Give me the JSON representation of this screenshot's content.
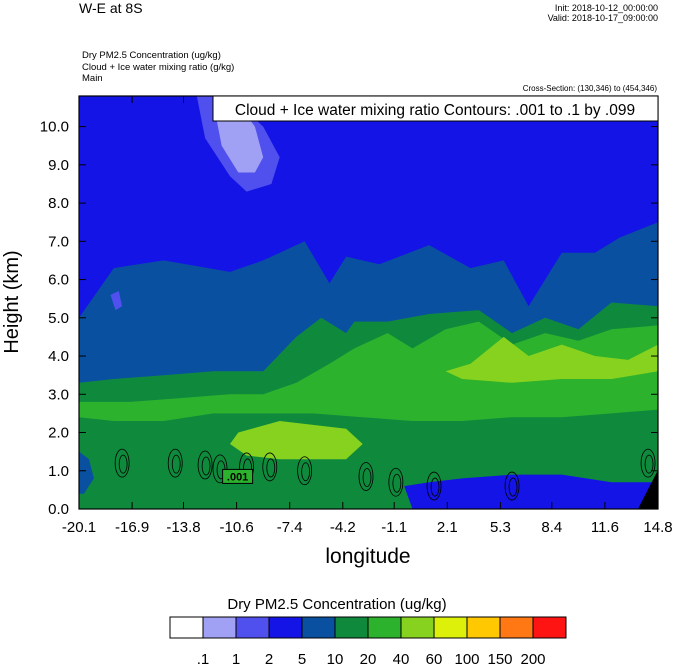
{
  "header": {
    "title": "W-E at 8S",
    "init": "Init: 2018-10-12_00:00:00",
    "valid": "Valid: 2018-10-17_09:00:00",
    "field1": "Dry PM2.5 Concentration   (ug/kg)",
    "field2": "Cloud + Ice water mixing ratio   (g/kg)",
    "field3": "Main",
    "cross_section": "Cross-Section: (130,346) to (454,346)"
  },
  "chart_data": {
    "type": "heatmap",
    "subtype": "vertical cross-section with filled and line contours",
    "xlabel": "longitude",
    "ylabel": "Height (km)",
    "x_ticks": [
      "-20.1",
      "-16.9",
      "-13.8",
      "-10.6",
      "-7.4",
      "-4.2",
      "-1.1",
      "2.1",
      "5.3",
      "8.4",
      "11.6",
      "14.8"
    ],
    "y_ticks": [
      "0.0",
      "1.0",
      "2.0",
      "3.0",
      "4.0",
      "5.0",
      "6.0",
      "7.0",
      "8.0",
      "9.0",
      "10.0"
    ],
    "xlim": [
      -20.1,
      14.8
    ],
    "ylim": [
      0.0,
      10.8
    ],
    "contour_note": "Cloud + Ice water mixing ratio Contours: .001 to .1 by .099",
    "contour_label": ".001",
    "colorbar": {
      "title": "Dry PM2.5 Concentration  (ug/kg)",
      "levels": [
        ".1",
        "1",
        "2",
        "5",
        "10",
        "20",
        "40",
        "60",
        "100",
        "150",
        "200"
      ],
      "colors": [
        "#ffffff",
        "#a0a0f5",
        "#5050ee",
        "#1414e6",
        "#0a50a0",
        "#0f8a3c",
        "#2db22d",
        "#87d21e",
        "#dcf00a",
        "#ffc800",
        "#ff7814",
        "#ff1414"
      ]
    },
    "regions": [
      {
        "level": "5-10",
        "x": [
          -20.1,
          -12,
          -6,
          -2,
          3,
          8,
          14.8,
          14.8,
          -20.1
        ],
        "y": [
          10.8,
          10.8,
          10.8,
          10.8,
          10.8,
          10.8,
          10.8,
          0.0,
          0.0
        ]
      },
      {
        "level": "10-20",
        "x": [
          -20.1,
          -18,
          -15,
          -11,
          -9,
          -6.5,
          -5,
          -4,
          -2,
          1,
          3.5,
          5.5,
          7,
          9,
          11,
          12.5,
          14.8,
          14.8,
          -20.1
        ],
        "y": [
          5.0,
          6.3,
          6.5,
          6.2,
          6.5,
          7.0,
          5.9,
          6.6,
          6.4,
          6.9,
          6.3,
          6.5,
          5.3,
          6.7,
          6.7,
          7.1,
          7.5,
          0.0,
          0.0
        ]
      },
      {
        "level": "20-40",
        "x": [
          -20.1,
          -18,
          -15,
          -12,
          -9,
          -7,
          -5.5,
          -4,
          -3.5,
          -1.5,
          1,
          4,
          6,
          8,
          10,
          12,
          14.8,
          14.8,
          -20.1
        ],
        "y": [
          3.3,
          3.4,
          3.5,
          3.6,
          3.6,
          4.5,
          5.0,
          4.6,
          4.9,
          4.9,
          5.1,
          5.2,
          4.6,
          5.0,
          4.7,
          5.4,
          5.3,
          0.0,
          0.0
        ]
      },
      {
        "level": "40-60",
        "x": [
          -20.1,
          -17,
          -14,
          -11,
          -9,
          -7,
          -5,
          -3.5,
          -1.5,
          0,
          2,
          4,
          6,
          8,
          10,
          12,
          14.8,
          14.8,
          12,
          9,
          6,
          3,
          0,
          -3,
          -6,
          -9,
          -12,
          -15,
          -18,
          -20.1
        ],
        "y": [
          2.8,
          2.8,
          2.9,
          3.0,
          3.0,
          3.3,
          3.8,
          4.2,
          4.6,
          4.2,
          4.7,
          4.9,
          4.3,
          4.6,
          4.4,
          4.7,
          4.8,
          2.6,
          2.5,
          2.4,
          2.4,
          2.3,
          2.3,
          2.4,
          2.5,
          2.5,
          2.5,
          2.3,
          2.3,
          2.4
        ]
      },
      {
        "level": "60-100",
        "x": [
          2,
          3.5,
          5.5,
          7,
          9,
          11,
          13,
          14.8,
          14.8,
          12,
          9,
          6,
          3
        ],
        "y": [
          3.6,
          3.8,
          4.5,
          4.0,
          4.3,
          4.0,
          3.9,
          4.3,
          3.6,
          3.4,
          3.4,
          3.3,
          3.4
        ]
      },
      {
        "level": "60-100",
        "x": [
          -10.5,
          -8,
          -6,
          -4,
          -3,
          -4,
          -6,
          -8,
          -10,
          -11
        ],
        "y": [
          2.0,
          2.3,
          2.2,
          2.1,
          1.7,
          1.3,
          1.3,
          1.3,
          1.4,
          1.7
        ]
      },
      {
        "level": "10-20",
        "x": [
          -20.1,
          -19.5,
          -19.2,
          -19.8,
          -20.1
        ],
        "y": [
          1.5,
          1.3,
          0.8,
          0.4,
          0.4
        ]
      },
      {
        "level": "5-10",
        "x": [
          -0.5,
          1,
          3,
          6,
          9,
          12,
          14.8,
          14.8,
          12,
          9,
          6,
          3,
          0
        ],
        "y": [
          0.6,
          0.7,
          0.8,
          0.9,
          0.9,
          0.7,
          0.7,
          0.0,
          0.0,
          0.0,
          0.0,
          0.0,
          0.0
        ]
      },
      {
        "level": "2-5",
        "x": [
          -13,
          -11,
          -9,
          -8,
          -8.5,
          -10,
          -11,
          -12.5
        ],
        "y": [
          10.8,
          10.8,
          10.0,
          9.2,
          8.5,
          8.3,
          8.7,
          9.7
        ]
      },
      {
        "level": "1-2",
        "x": [
          -12,
          -10.5,
          -9.5,
          -9,
          -9.5,
          -10.5,
          -11.5
        ],
        "y": [
          10.6,
          10.6,
          10.0,
          9.2,
          8.8,
          8.8,
          9.5
        ]
      },
      {
        "level": "2-5",
        "x": [
          -18.2,
          -17.7,
          -17.5,
          -17.9
        ],
        "y": [
          5.6,
          5.7,
          5.3,
          5.2
        ]
      }
    ],
    "cloud_contours": [
      {
        "x": -17.5,
        "y": 1.2
      },
      {
        "x": -14.3,
        "y": 1.2
      },
      {
        "x": -12.5,
        "y": 1.15
      },
      {
        "x": -11.6,
        "y": 1.05
      },
      {
        "x": -10.0,
        "y": 1.1
      },
      {
        "x": -8.6,
        "y": 1.1
      },
      {
        "x": -6.5,
        "y": 1.0
      },
      {
        "x": -2.8,
        "y": 0.85
      },
      {
        "x": -1.0,
        "y": 0.7
      },
      {
        "x": 1.3,
        "y": 0.6
      },
      {
        "x": 6.0,
        "y": 0.6
      },
      {
        "x": 14.2,
        "y": 1.2
      }
    ]
  }
}
